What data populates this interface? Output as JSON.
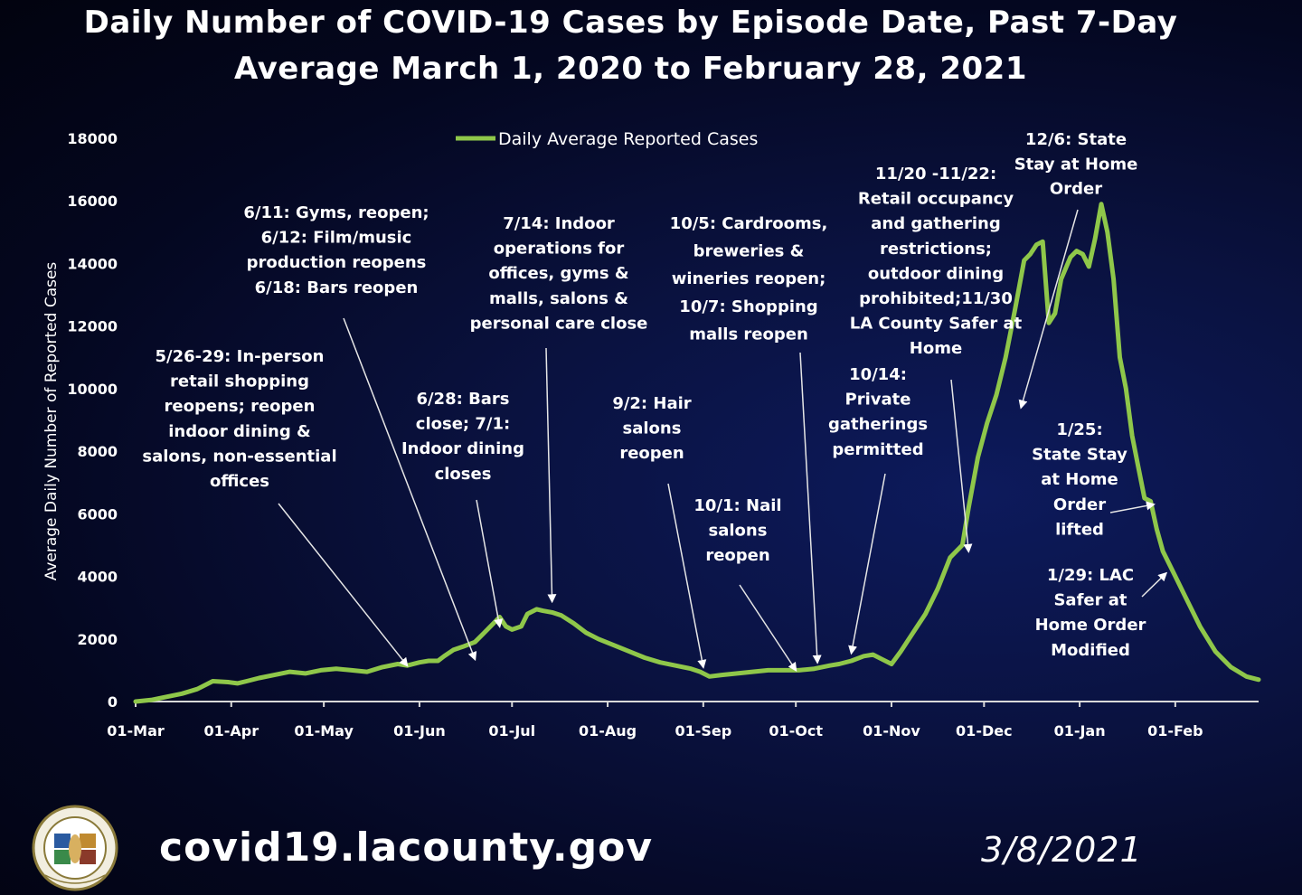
{
  "chart_data": {
    "type": "line",
    "title_line1": "Daily Number of COVID-19 Cases by Episode Date, Past 7-Day",
    "title_line2": "Average March 1, 2020 to February 28, 2021",
    "ylabel": "Average Daily Number of Reported Cases",
    "xlabel": "",
    "ylim": [
      0,
      18000
    ],
    "y_ticks": [
      "0",
      "2000",
      "4000",
      "6000",
      "8000",
      "10000",
      "12000",
      "14000",
      "16000",
      "18000"
    ],
    "x_tick_labels": [
      "01-Mar",
      "01-Apr",
      "01-May",
      "01-Jun",
      "01-Jul",
      "01-Aug",
      "01-Sep",
      "01-Oct",
      "01-Nov",
      "01-Dec",
      "01-Jan",
      "01-Feb"
    ],
    "x_tick_days": [
      0,
      31,
      61,
      92,
      122,
      153,
      184,
      214,
      245,
      275,
      306,
      337
    ],
    "x_range_days": [
      0,
      364
    ],
    "legend": "Daily Average Reported Cases",
    "legend_position": "top-center",
    "line_color": "#8fc74a",
    "series": [
      {
        "name": "Daily Average Reported Cases",
        "day": [
          0,
          5,
          10,
          15,
          20,
          25,
          30,
          33,
          36,
          40,
          45,
          50,
          55,
          60,
          65,
          70,
          75,
          80,
          85,
          88,
          92,
          95,
          98,
          100,
          103,
          106,
          110,
          113,
          116,
          118,
          120,
          122,
          125,
          127,
          130,
          132,
          135,
          138,
          142,
          146,
          150,
          155,
          160,
          165,
          170,
          175,
          180,
          183,
          186,
          190,
          195,
          200,
          205,
          210,
          215,
          220,
          225,
          228,
          232,
          236,
          239,
          242,
          245,
          248,
          252,
          256,
          260,
          264,
          268,
          270,
          273,
          276,
          279,
          282,
          285,
          288,
          290,
          292,
          294,
          296,
          298,
          300,
          303,
          305,
          307,
          309,
          311,
          313,
          315,
          317,
          319,
          321,
          323,
          325,
          327,
          329,
          331,
          333,
          336,
          340,
          345,
          350,
          355,
          360,
          364
        ],
        "cases": [
          0,
          50,
          150,
          250,
          400,
          650,
          620,
          580,
          650,
          750,
          850,
          950,
          900,
          1000,
          1050,
          1000,
          950,
          1100,
          1200,
          1150,
          1250,
          1300,
          1300,
          1450,
          1650,
          1750,
          1900,
          2200,
          2500,
          2700,
          2400,
          2300,
          2400,
          2800,
          2950,
          2900,
          2850,
          2750,
          2500,
          2200,
          2000,
          1800,
          1600,
          1400,
          1250,
          1150,
          1050,
          950,
          800,
          850,
          900,
          950,
          1000,
          1000,
          1000,
          1050,
          1150,
          1200,
          1300,
          1450,
          1500,
          1350,
          1200,
          1600,
          2200,
          2800,
          3600,
          4600,
          5000,
          6200,
          7800,
          8900,
          9800,
          11000,
          12500,
          14100,
          14300,
          14600,
          14700,
          12100,
          12400,
          13500,
          14200,
          14400,
          14300,
          13900,
          14800,
          15900,
          15000,
          13500,
          11000,
          10000,
          8500,
          7500,
          6500,
          6400,
          5500,
          4800,
          4200,
          3400,
          2400,
          1600,
          1100,
          800,
          700
        ]
      }
    ],
    "annotations": [
      {
        "lines": [
          "5/26-29: In-person",
          "retail shopping",
          "reopens; reopen",
          "indoor dining &",
          "salons, non-essential",
          "offices"
        ],
        "target_day": 88,
        "target_cases": 1150
      },
      {
        "lines": [
          "6/11: Gyms, reopen;",
          "6/12: Film/music",
          "production reopens",
          "6/18: Bars reopen"
        ],
        "target_day": 110,
        "target_cases": 1350
      },
      {
        "lines": [
          "6/28: Bars",
          "close; 7/1:",
          "Indoor dining",
          "closes"
        ],
        "target_day": 118,
        "target_cases": 2400
      },
      {
        "lines": [
          "7/14: Indoor",
          "operations for",
          "offices, gyms &",
          "malls, salons &",
          "personal care close"
        ],
        "target_day": 135,
        "target_cases": 3200
      },
      {
        "lines": [
          "9/2: Hair",
          "salons",
          "reopen"
        ],
        "target_day": 184,
        "target_cases": 1100
      },
      {
        "lines": [
          "10/1: Nail",
          "salons",
          "reopen"
        ],
        "target_day": 214,
        "target_cases": 1000
      },
      {
        "lines": [
          "10/5: Cardrooms,",
          "breweries &",
          "wineries reopen;",
          "10/7: Shopping",
          "malls reopen"
        ],
        "target_day": 221,
        "target_cases": 1250
      },
      {
        "lines": [
          "10/14:",
          "Private",
          "gatherings",
          "permitted"
        ],
        "target_day": 232,
        "target_cases": 1550
      },
      {
        "lines": [
          "11/20 -11/22:",
          "Retail occupancy",
          "and gathering",
          "restrictions;",
          "outdoor dining",
          "prohibited;11/30",
          "LA County Safer at",
          "Home"
        ],
        "target_day": 270,
        "target_cases": 4800
      },
      {
        "lines": [
          "12/6:  State",
          "Stay at Home",
          "Order"
        ],
        "target_day": 287,
        "target_cases": 9400
      },
      {
        "lines": [
          "1/25:",
          "State Stay",
          "at Home",
          "Order",
          "lifted"
        ],
        "target_day": 330,
        "target_cases": 6300
      },
      {
        "lines": [
          "1/29:  LAC",
          "Safer at",
          "Home Order",
          "Modified"
        ],
        "target_day": 334,
        "target_cases": 4100
      }
    ]
  },
  "footer": {
    "url": "covid19.lacounty.gov",
    "date": "3/8/2021",
    "seal_text_top": "COUNTY OF LOS ANGELES",
    "seal_text_bottom": "CALIFORNIA"
  }
}
